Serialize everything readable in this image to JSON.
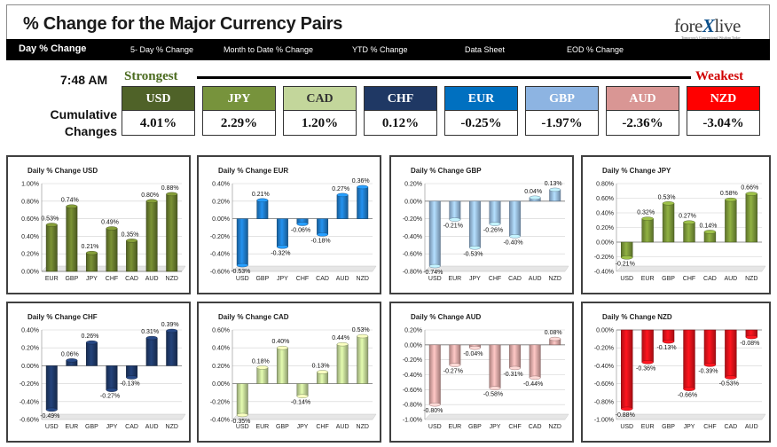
{
  "header": {
    "title": "% Change for the Major Currency Pairs",
    "logo": {
      "main_left": "fore",
      "main_x": "X",
      "main_right": "live",
      "tagline": "Tomorrow's Conventional Wisdom Today"
    }
  },
  "nav": {
    "items": [
      "Day % Change",
      "5- Day % Change",
      "Month to Date % Change",
      "YTD % Change",
      "Data Sheet",
      "EOD % Change"
    ]
  },
  "summary": {
    "time": "7:48 AM",
    "strongest_label": "Strongest",
    "weakest_label": "Weakest",
    "cumulative_label_1": "Cumulative",
    "cumulative_label_2": "Changes",
    "currencies": [
      {
        "name": "USD",
        "value": "4.01%",
        "color": "#4f6228"
      },
      {
        "name": "JPY",
        "value": "2.29%",
        "color": "#77933c"
      },
      {
        "name": "CAD",
        "value": "1.20%",
        "color": "#c3d69b"
      },
      {
        "name": "CHF",
        "value": "0.12%",
        "color": "#1f3864"
      },
      {
        "name": "EUR",
        "value": "-0.25%",
        "color": "#0070c0"
      },
      {
        "name": "GBP",
        "value": "-1.97%",
        "color": "#8db4e2"
      },
      {
        "name": "AUD",
        "value": "-2.36%",
        "color": "#d99694"
      },
      {
        "name": "NZD",
        "value": "-3.04%",
        "color": "#ff0000"
      }
    ]
  },
  "chart_data": [
    {
      "type": "bar",
      "title": "Daily % Change USD",
      "color": "#6b7f2e",
      "categories": [
        "EUR",
        "GBP",
        "JPY",
        "CHF",
        "CAD",
        "AUD",
        "NZD"
      ],
      "values": [
        0.53,
        0.74,
        0.21,
        0.49,
        0.35,
        0.8,
        0.88
      ],
      "value_labels": [
        "0.53%",
        "0.74%",
        "0.21%",
        "0.49%",
        "0.35%",
        "0.80%",
        "0.88%"
      ],
      "ylim": [
        0,
        1.0
      ],
      "ticks": [
        0,
        0.2,
        0.4,
        0.6,
        0.8,
        1.0
      ],
      "tick_labels": [
        "0.00%",
        "0.20%",
        "0.40%",
        "0.60%",
        "0.80%",
        "1.00%"
      ]
    },
    {
      "type": "bar",
      "title": "Daily % Change EUR",
      "color": "#1f7fd0",
      "categories": [
        "USD",
        "GBP",
        "JPY",
        "CHF",
        "CAD",
        "AUD",
        "NZD"
      ],
      "values": [
        -0.53,
        0.21,
        -0.32,
        -0.06,
        -0.18,
        0.27,
        0.36
      ],
      "value_labels": [
        "-0.53%",
        "0.21%",
        "-0.32%",
        "-0.06%",
        "-0.18%",
        "0.27%",
        "0.36%"
      ],
      "ylim": [
        -0.6,
        0.4
      ],
      "ticks": [
        -0.6,
        -0.4,
        -0.2,
        0,
        0.2,
        0.4
      ],
      "tick_labels": [
        "-0.60%",
        "-0.40%",
        "-0.20%",
        "0.00%",
        "0.20%",
        "0.40%"
      ]
    },
    {
      "type": "bar",
      "title": "Daily % Change GBP",
      "color": "#9dc3ea",
      "categories": [
        "USD",
        "EUR",
        "JPY",
        "CHF",
        "CAD",
        "AUD",
        "NZD"
      ],
      "values": [
        -0.74,
        -0.21,
        -0.53,
        -0.26,
        -0.4,
        0.04,
        0.13
      ],
      "value_labels": [
        "-0.74%",
        "-0.21%",
        "-0.53%",
        "-0.26%",
        "-0.40%",
        "0.04%",
        "0.13%"
      ],
      "ylim": [
        -0.8,
        0.2
      ],
      "ticks": [
        -0.8,
        -0.6,
        -0.4,
        -0.2,
        0,
        0.2
      ],
      "tick_labels": [
        "-0.80%",
        "-0.60%",
        "-0.40%",
        "-0.20%",
        "0.00%",
        "0.20%"
      ]
    },
    {
      "type": "bar",
      "title": "Daily % Change JPY",
      "color": "#7e9b3a",
      "categories": [
        "USD",
        "EUR",
        "GBP",
        "CHF",
        "CAD",
        "AUD",
        "NZD"
      ],
      "values": [
        -0.21,
        0.32,
        0.53,
        0.27,
        0.14,
        0.58,
        0.66
      ],
      "value_labels": [
        "-0.21%",
        "0.32%",
        "0.53%",
        "0.27%",
        "0.14%",
        "0.58%",
        "0.66%"
      ],
      "ylim": [
        -0.4,
        0.8
      ],
      "ticks": [
        -0.4,
        -0.2,
        0,
        0.2,
        0.4,
        0.6,
        0.8
      ],
      "tick_labels": [
        "-0.40%",
        "-0.20%",
        "0.00%",
        "0.20%",
        "0.40%",
        "0.60%",
        "0.80%"
      ]
    },
    {
      "type": "bar",
      "title": "Daily % Change CHF",
      "color": "#1f3a6b",
      "categories": [
        "USD",
        "EUR",
        "GBP",
        "JPY",
        "CAD",
        "AUD",
        "NZD"
      ],
      "values": [
        -0.49,
        0.06,
        0.26,
        -0.27,
        -0.13,
        0.31,
        0.39
      ],
      "value_labels": [
        "-0.49%",
        "0.06%",
        "0.26%",
        "-0.27%",
        "-0.13%",
        "0.31%",
        "0.39%"
      ],
      "ylim": [
        -0.6,
        0.4
      ],
      "ticks": [
        -0.6,
        -0.4,
        -0.2,
        0,
        0.2,
        0.4
      ],
      "tick_labels": [
        "-0.60%",
        "-0.40%",
        "-0.20%",
        "0.00%",
        "0.20%",
        "0.40%"
      ]
    },
    {
      "type": "bar",
      "title": "Daily % Change CAD",
      "color": "#c7dc9a",
      "categories": [
        "USD",
        "EUR",
        "GBP",
        "JPY",
        "CHF",
        "AUD",
        "NZD"
      ],
      "values": [
        -0.35,
        0.18,
        0.4,
        -0.14,
        0.13,
        0.44,
        0.53
      ],
      "value_labels": [
        "-0.35%",
        "0.18%",
        "0.40%",
        "-0.14%",
        "0.13%",
        "0.44%",
        "0.53%"
      ],
      "ylim": [
        -0.4,
        0.6
      ],
      "ticks": [
        -0.4,
        -0.2,
        0,
        0.2,
        0.4,
        0.6
      ],
      "tick_labels": [
        "-0.40%",
        "-0.20%",
        "0.00%",
        "0.20%",
        "0.40%",
        "0.60%"
      ]
    },
    {
      "type": "bar",
      "title": "Daily % Change AUD",
      "color": "#e8aeac",
      "categories": [
        "USD",
        "EUR",
        "GBP",
        "JPY",
        "CHF",
        "CAD",
        "NZD"
      ],
      "values": [
        -0.8,
        -0.27,
        -0.04,
        -0.58,
        -0.31,
        -0.44,
        0.08
      ],
      "value_labels": [
        "-0.80%",
        "-0.27%",
        "-0.04%",
        "-0.58%",
        "-0.31%",
        "-0.44%",
        "0.08%"
      ],
      "ylim": [
        -1.0,
        0.2
      ],
      "ticks": [
        -1.0,
        -0.8,
        -0.6,
        -0.4,
        -0.2,
        0,
        0.2
      ],
      "tick_labels": [
        "-1.00%",
        "-0.80%",
        "-0.60%",
        "-0.40%",
        "-0.20%",
        "0.00%",
        "0.20%"
      ]
    },
    {
      "type": "bar",
      "title": "Daily % Change NZD",
      "color": "#e8121a",
      "categories": [
        "USD",
        "EUR",
        "GBP",
        "JPY",
        "CHF",
        "CAD",
        "AUD"
      ],
      "values": [
        -0.88,
        -0.36,
        -0.13,
        -0.66,
        -0.39,
        -0.53,
        -0.08
      ],
      "value_labels": [
        "-0.88%",
        "-0.36%",
        "-0.13%",
        "-0.66%",
        "-0.39%",
        "-0.53%",
        "-0.08%"
      ],
      "ylim": [
        -1.0,
        0
      ],
      "ticks": [
        -1.0,
        -0.8,
        -0.6,
        -0.4,
        -0.2,
        0
      ],
      "tick_labels": [
        "-1.00%",
        "-0.80%",
        "-0.60%",
        "-0.40%",
        "-0.20%",
        "0.00%"
      ]
    }
  ]
}
